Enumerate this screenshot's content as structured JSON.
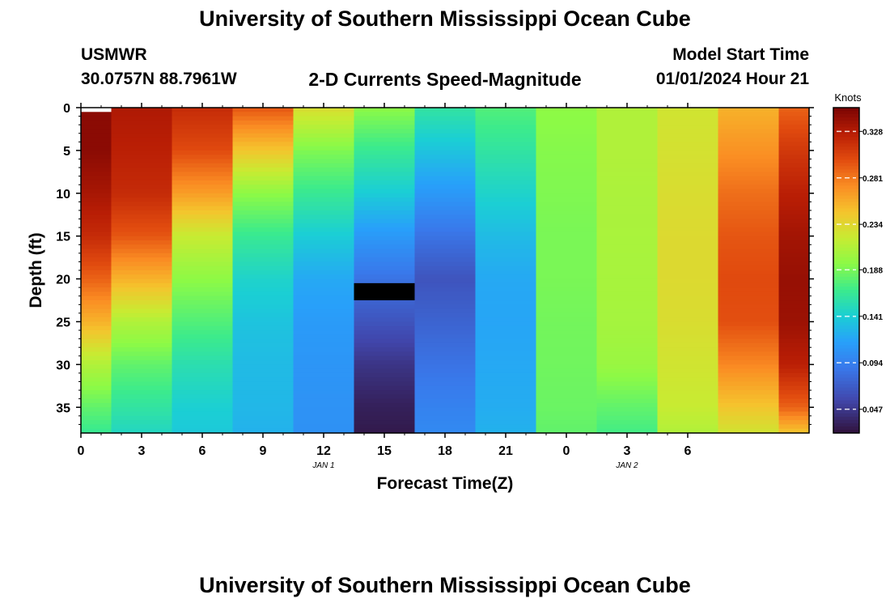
{
  "page": {
    "title_top": "University of Southern Mississippi Ocean Cube",
    "title_bottom": "University of Southern Mississippi Ocean Cube",
    "station": "USMWR",
    "coords": "30.0757N  88.7961W",
    "subtitle": "2-D Currents Speed-Magnitude",
    "start_label": "Model Start Time",
    "start_value": "01/01/2024 Hour 21"
  },
  "chart_data": {
    "type": "heatmap",
    "title": "2-D Currents Speed-Magnitude",
    "xlabel": "Forecast Time(Z)",
    "ylabel": "Depth (ft)",
    "x_ticks": [
      "0",
      "3",
      "6",
      "9",
      "12",
      "15",
      "18",
      "21",
      "0",
      "3",
      "6"
    ],
    "day_labels": [
      {
        "text": "JAN 1",
        "at_tick": 4
      },
      {
        "text": "JAN 2",
        "at_tick": 9
      }
    ],
    "ylim": [
      0,
      38
    ],
    "y_ticks": [
      0,
      5,
      10,
      15,
      20,
      25,
      30,
      35
    ],
    "x_range_hours": [
      0,
      36
    ],
    "column_step_hours": 3,
    "colorbar": {
      "label": "Knots",
      "range": [
        0.023,
        0.352
      ],
      "ticks": [
        "0.328",
        "0.281",
        "0.234",
        "0.188",
        "0.141",
        "0.094",
        "0.047"
      ],
      "tick_values": [
        0.328,
        0.281,
        0.234,
        0.188,
        0.141,
        0.094,
        0.047
      ]
    },
    "depths_ft": [
      0,
      5,
      10,
      15,
      20,
      25,
      30,
      35,
      38
    ],
    "missing_cells": [
      {
        "hour": 0,
        "depth_from": 0,
        "depth_to": 0.5,
        "color": "#ffffff"
      },
      {
        "hour": 15,
        "depth_from": 20.5,
        "depth_to": 22.5,
        "color": "#000000"
      }
    ],
    "series": [
      {
        "name": "hour 0",
        "values": [
          0.345,
          0.345,
          0.333,
          0.318,
          0.29,
          0.255,
          0.21,
          0.18,
          0.165
        ]
      },
      {
        "name": "hour 3",
        "values": [
          0.33,
          0.325,
          0.318,
          0.295,
          0.255,
          0.21,
          0.18,
          0.16,
          0.148
        ]
      },
      {
        "name": "hour 6",
        "values": [
          0.318,
          0.3,
          0.265,
          0.22,
          0.195,
          0.175,
          0.155,
          0.142,
          0.138
        ]
      },
      {
        "name": "hour 9",
        "values": [
          0.295,
          0.245,
          0.195,
          0.165,
          0.145,
          0.135,
          0.13,
          0.128,
          0.125
        ]
      },
      {
        "name": "hour 12",
        "values": [
          0.23,
          0.19,
          0.165,
          0.14,
          0.12,
          0.112,
          0.108,
          0.106,
          0.105
        ]
      },
      {
        "name": "hour 15",
        "values": [
          0.195,
          0.165,
          0.14,
          0.11,
          0.085,
          0.065,
          0.045,
          0.032,
          0.028
        ]
      },
      {
        "name": "hour 18",
        "values": [
          0.16,
          0.135,
          0.11,
          0.085,
          0.065,
          0.075,
          0.085,
          0.095,
          0.1
        ]
      },
      {
        "name": "hour 21",
        "values": [
          0.175,
          0.16,
          0.145,
          0.13,
          0.12,
          0.118,
          0.12,
          0.122,
          0.125
        ]
      },
      {
        "name": "hour 24",
        "values": [
          0.195,
          0.192,
          0.19,
          0.188,
          0.188,
          0.186,
          0.185,
          0.183,
          0.18
        ]
      },
      {
        "name": "hour 27",
        "values": [
          0.21,
          0.21,
          0.208,
          0.207,
          0.206,
          0.205,
          0.2,
          0.18,
          0.17
        ]
      },
      {
        "name": "hour 30",
        "values": [
          0.225,
          0.227,
          0.23,
          0.232,
          0.232,
          0.23,
          0.225,
          0.22,
          0.21
        ]
      },
      {
        "name": "hour 33",
        "values": [
          0.255,
          0.27,
          0.285,
          0.295,
          0.3,
          0.298,
          0.275,
          0.245,
          0.225
        ]
      },
      {
        "name": "hour 36",
        "values": [
          0.29,
          0.31,
          0.325,
          0.335,
          0.34,
          0.338,
          0.325,
          0.29,
          0.245
        ]
      }
    ]
  }
}
